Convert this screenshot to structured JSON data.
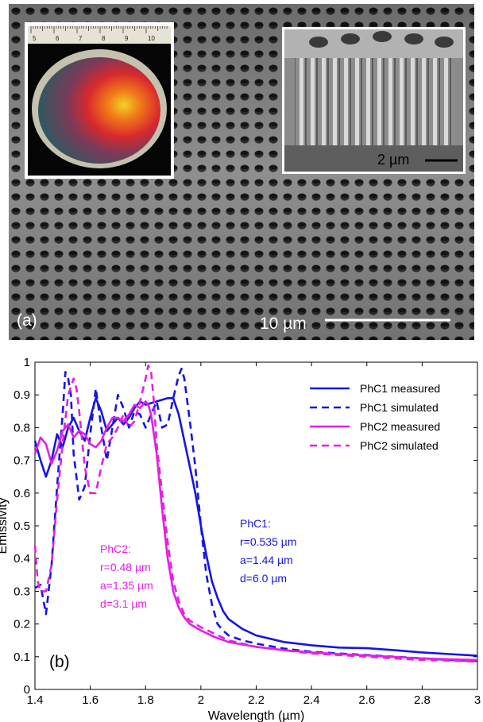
{
  "panel_a": {
    "label": "(a)",
    "scale_main": "10 µm",
    "scale_inset": "2 µm",
    "ruler_numbers": [
      "5",
      "6",
      "7",
      "8",
      "9",
      "10"
    ]
  },
  "panel_b": {
    "label": "(b)",
    "annotations": {
      "phc1": [
        "PhC1:",
        "r=0.535 µm",
        "a=1.44 µm",
        "d=6.0 µm"
      ],
      "phc2": [
        "PhC2:",
        "r=0.48 µm",
        "a=1.35 µm",
        "d=3.1 µm"
      ]
    }
  },
  "chart_data": {
    "type": "line",
    "xlabel": "Wavelength (µm)",
    "ylabel": "Emissivity",
    "xlim": [
      1.4,
      3
    ],
    "ylim": [
      0,
      1
    ],
    "xticks": [
      "1.4",
      "1.6",
      "1.8",
      "2",
      "2.2",
      "2.4",
      "2.6",
      "2.8",
      "3"
    ],
    "yticks": [
      "0",
      "0.1",
      "0.2",
      "0.3",
      "0.4",
      "0.5",
      "0.6",
      "0.7",
      "0.8",
      "0.9",
      "1"
    ],
    "legend_position": "top-right",
    "series": [
      {
        "name": "PhC1 measured",
        "color": "#1515e6",
        "dash": false,
        "x": [
          1.4,
          1.42,
          1.44,
          1.46,
          1.48,
          1.5,
          1.52,
          1.54,
          1.56,
          1.58,
          1.6,
          1.62,
          1.64,
          1.66,
          1.68,
          1.7,
          1.72,
          1.74,
          1.76,
          1.78,
          1.8,
          1.84,
          1.88,
          1.9,
          1.92,
          1.94,
          1.96,
          1.98,
          2.0,
          2.02,
          2.04,
          2.06,
          2.08,
          2.1,
          2.15,
          2.2,
          2.3,
          2.4,
          2.5,
          2.6,
          2.7,
          2.8,
          2.9,
          3.0
        ],
        "y": [
          0.76,
          0.7,
          0.65,
          0.7,
          0.78,
          0.74,
          0.8,
          0.83,
          0.79,
          0.76,
          0.83,
          0.89,
          0.85,
          0.79,
          0.81,
          0.83,
          0.81,
          0.83,
          0.86,
          0.88,
          0.87,
          0.88,
          0.89,
          0.89,
          0.84,
          0.76,
          0.68,
          0.6,
          0.5,
          0.41,
          0.33,
          0.28,
          0.24,
          0.215,
          0.185,
          0.165,
          0.145,
          0.135,
          0.128,
          0.126,
          0.12,
          0.113,
          0.108,
          0.103
        ]
      },
      {
        "name": "PhC1 simulated",
        "color": "#1515e6",
        "dash": true,
        "x": [
          1.4,
          1.42,
          1.44,
          1.46,
          1.48,
          1.5,
          1.51,
          1.52,
          1.53,
          1.54,
          1.56,
          1.58,
          1.6,
          1.62,
          1.64,
          1.66,
          1.68,
          1.7,
          1.72,
          1.74,
          1.76,
          1.78,
          1.8,
          1.82,
          1.84,
          1.86,
          1.88,
          1.9,
          1.92,
          1.93,
          1.94,
          1.96,
          1.98,
          2.0,
          2.02,
          2.04,
          2.06,
          2.08,
          2.1,
          2.15,
          2.2,
          2.3,
          2.4,
          2.5,
          2.6,
          2.7,
          2.8,
          2.9,
          3.0
        ],
        "y": [
          0.31,
          0.32,
          0.23,
          0.38,
          0.62,
          0.84,
          0.97,
          0.95,
          0.9,
          0.72,
          0.58,
          0.62,
          0.78,
          0.92,
          0.8,
          0.7,
          0.8,
          0.9,
          0.86,
          0.8,
          0.85,
          0.84,
          0.8,
          0.84,
          0.88,
          0.8,
          0.81,
          0.89,
          0.96,
          0.98,
          0.95,
          0.82,
          0.68,
          0.5,
          0.35,
          0.26,
          0.2,
          0.18,
          0.165,
          0.15,
          0.14,
          0.125,
          0.115,
          0.11,
          0.105,
          0.1,
          0.095,
          0.09,
          0.087
        ]
      },
      {
        "name": "PhC2 measured",
        "color": "#e61ee6",
        "dash": false,
        "x": [
          1.4,
          1.42,
          1.44,
          1.46,
          1.48,
          1.5,
          1.52,
          1.54,
          1.56,
          1.58,
          1.6,
          1.62,
          1.64,
          1.66,
          1.68,
          1.7,
          1.72,
          1.74,
          1.76,
          1.78,
          1.8,
          1.81,
          1.82,
          1.84,
          1.86,
          1.88,
          1.9,
          1.92,
          1.94,
          1.96,
          1.98,
          2.0,
          2.05,
          2.1,
          2.2,
          2.3,
          2.4,
          2.5,
          2.6,
          2.7,
          2.8,
          2.9,
          3.0
        ],
        "y": [
          0.72,
          0.77,
          0.75,
          0.69,
          0.73,
          0.79,
          0.81,
          0.77,
          0.79,
          0.78,
          0.75,
          0.74,
          0.76,
          0.8,
          0.83,
          0.83,
          0.82,
          0.84,
          0.87,
          0.86,
          0.88,
          0.87,
          0.84,
          0.72,
          0.55,
          0.4,
          0.3,
          0.25,
          0.22,
          0.2,
          0.19,
          0.18,
          0.16,
          0.145,
          0.13,
          0.12,
          0.113,
          0.108,
          0.104,
          0.099,
          0.095,
          0.092,
          0.09
        ]
      },
      {
        "name": "PhC2 simulated",
        "color": "#e61ee6",
        "dash": true,
        "x": [
          1.4,
          1.41,
          1.42,
          1.44,
          1.46,
          1.48,
          1.5,
          1.52,
          1.54,
          1.55,
          1.56,
          1.58,
          1.6,
          1.62,
          1.64,
          1.66,
          1.68,
          1.7,
          1.72,
          1.74,
          1.76,
          1.78,
          1.8,
          1.81,
          1.82,
          1.83,
          1.84,
          1.86,
          1.88,
          1.9,
          1.92,
          1.94,
          1.96,
          1.98,
          2.0,
          2.05,
          2.1,
          2.2,
          2.3,
          2.4,
          2.5,
          2.6,
          2.7,
          2.8,
          2.9,
          3.0
        ],
        "y": [
          0.44,
          0.33,
          0.3,
          0.3,
          0.38,
          0.58,
          0.75,
          0.9,
          0.95,
          0.92,
          0.85,
          0.68,
          0.6,
          0.6,
          0.68,
          0.75,
          0.77,
          0.8,
          0.84,
          0.8,
          0.82,
          0.88,
          0.95,
          0.99,
          0.97,
          0.88,
          0.75,
          0.6,
          0.45,
          0.33,
          0.27,
          0.23,
          0.21,
          0.2,
          0.19,
          0.17,
          0.15,
          0.13,
          0.12,
          0.11,
          0.105,
          0.1,
          0.095,
          0.09,
          0.088,
          0.085
        ]
      }
    ]
  }
}
